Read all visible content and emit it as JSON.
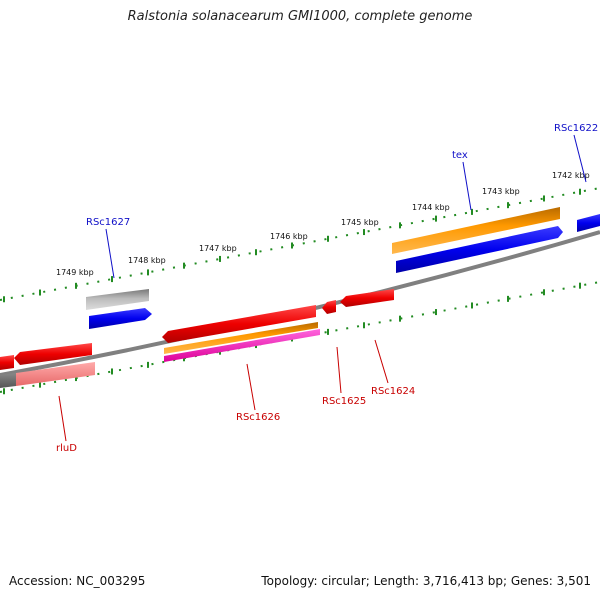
{
  "title": "Ralstonia solanacearum GMI1000, complete genome",
  "footer": {
    "accession": "Accession: NC_003295",
    "summary": "Topology: circular; Length: 3,716,413 bp; Genes: 3,501"
  },
  "ticks": [
    {
      "label": "1742 kbp"
    },
    {
      "label": "1743 kbp"
    },
    {
      "label": "1744 kbp"
    },
    {
      "label": "1745 kbp"
    },
    {
      "label": "1746 kbp"
    },
    {
      "label": "1747 kbp"
    },
    {
      "label": "1748 kbp"
    },
    {
      "label": "1749 kbp"
    }
  ],
  "gene_labels": [
    {
      "label": "RSc1622",
      "strand": "plus"
    },
    {
      "label": "tex",
      "strand": "plus"
    },
    {
      "label": "RSc1627",
      "strand": "plus"
    },
    {
      "label": "RSc1626",
      "strand": "minus"
    },
    {
      "label": "RSc1625",
      "strand": "minus"
    },
    {
      "label": "RSc1624",
      "strand": "minus"
    },
    {
      "label": "rluD",
      "strand": "minus"
    }
  ],
  "colors": {
    "plus_label": "#1010c8",
    "minus_label": "#c80000",
    "tick": "#228b22",
    "backbone": "#808080",
    "red": "#ee0000",
    "orange": "#ff9900",
    "blue": "#0000ee",
    "gray": "#aaaaaa",
    "magenta": "#ff33cc",
    "pink": "#f08080"
  }
}
